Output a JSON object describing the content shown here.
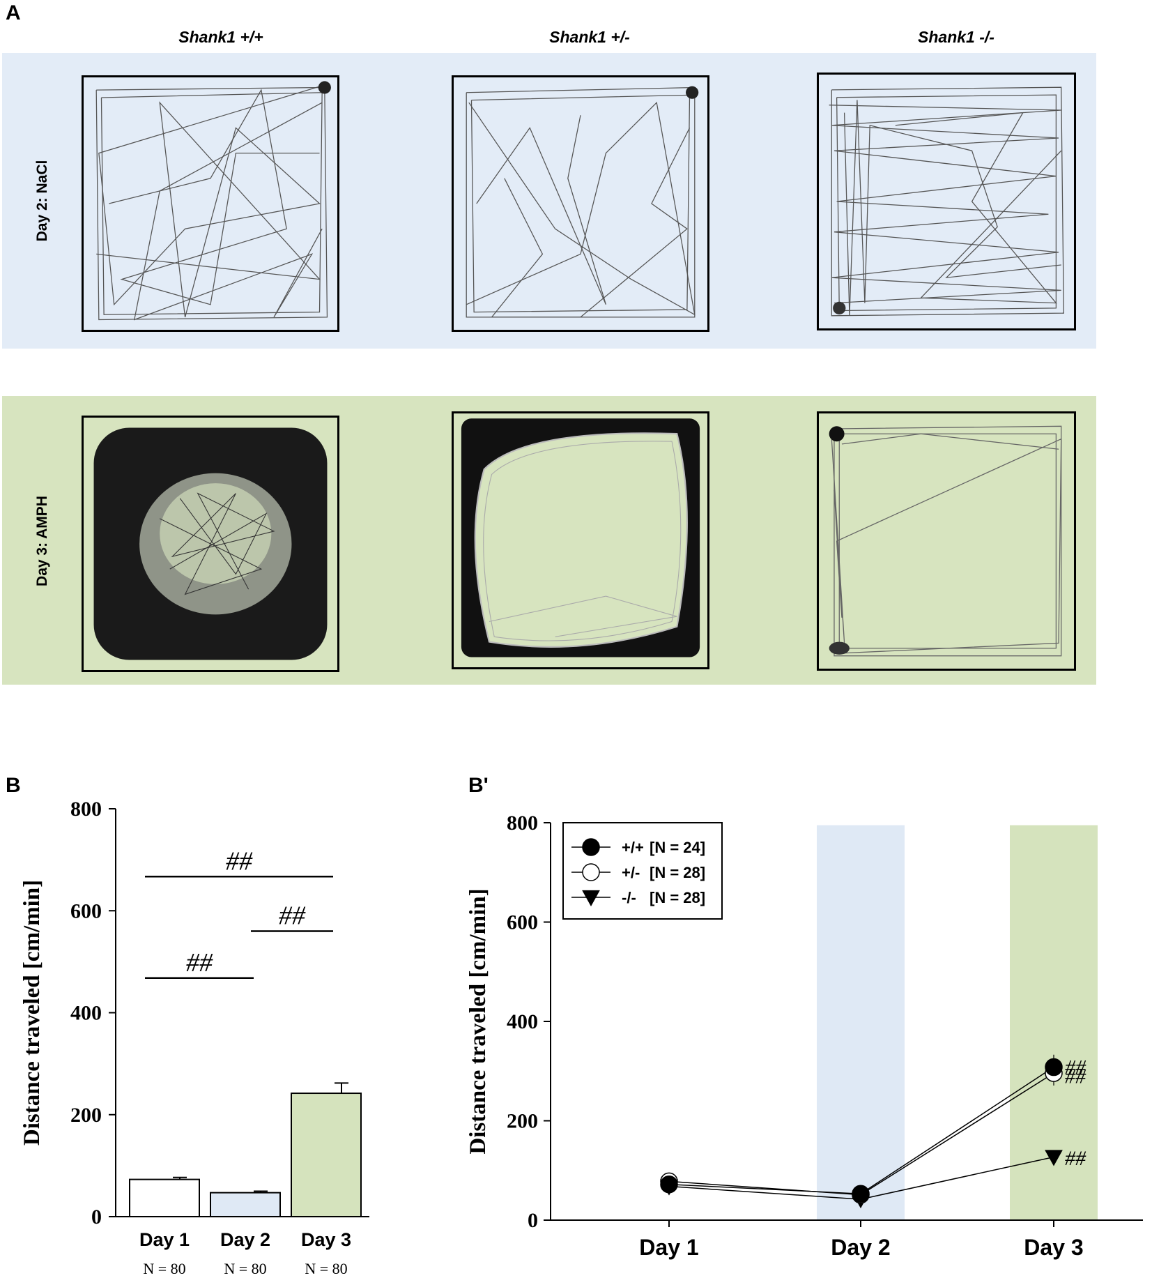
{
  "panels": {
    "a_label": "A",
    "b_label": "B",
    "b2_label": "B'"
  },
  "panel_a": {
    "column_headers": [
      "Shank1 +/+",
      "Shank1 +/-",
      "Shank1 -/-"
    ],
    "row_headers": [
      "Day 2: NaCl",
      "Day 3: AMPH"
    ],
    "colors": {
      "nacl_band": "#e3ecf7",
      "amph_band": "#d7e4bf"
    }
  },
  "chart_data": [
    {
      "type": "bar",
      "categories": [
        "Day 1",
        "Day 2",
        "Day 3"
      ],
      "values": [
        73,
        47,
        242
      ],
      "errors": [
        4,
        3,
        20
      ],
      "bar_colors": [
        "#ffffff",
        "#dfe9f5",
        "#d5e3bd"
      ],
      "sample_sizes": [
        "N = 80",
        "N = 80",
        "N = 80"
      ],
      "ylabel": "Distance traveled [cm/min]",
      "ylim": [
        0,
        800
      ],
      "yticks": [
        0,
        200,
        400,
        600,
        800
      ],
      "significance": [
        {
          "from": "Day 1",
          "to": "Day 3",
          "y": 667,
          "label": "##"
        },
        {
          "from": "Day 2",
          "to": "Day 3",
          "y": 560,
          "label": "##"
        },
        {
          "from": "Day 1",
          "to": "Day 2",
          "y": 468,
          "label": "##"
        }
      ]
    },
    {
      "type": "line",
      "categories": [
        "Day 1",
        "Day 2",
        "Day 3"
      ],
      "ylabel": "Distance traveled [cm/min]",
      "ylim": [
        0,
        800
      ],
      "yticks": [
        0,
        200,
        400,
        600,
        800
      ],
      "background_bands": [
        {
          "category": "Day 2",
          "color": "#dfe9f5"
        },
        {
          "category": "Day 3",
          "color": "#d5e3bd"
        }
      ],
      "series": [
        {
          "name": "+/+",
          "n_label": "[N = 24]",
          "marker": "filled-circle",
          "values": [
            72,
            53,
            308
          ],
          "errors": [
            5,
            4,
            25
          ]
        },
        {
          "name": "+/-",
          "n_label": "[N = 28]",
          "marker": "open-circle",
          "values": [
            78,
            51,
            296
          ],
          "errors": [
            5,
            4,
            25
          ]
        },
        {
          "name": "-/-",
          "n_label": "[N = 28]",
          "marker": "filled-triangle",
          "values": [
            68,
            42,
            127
          ],
          "errors": [
            4,
            3,
            10
          ]
        }
      ],
      "annotations": [
        {
          "category": "Day 3",
          "y": 308,
          "label": "##"
        },
        {
          "category": "Day 3",
          "y": 290,
          "label": "##"
        },
        {
          "category": "Day 3",
          "y": 125,
          "label": "##"
        }
      ],
      "legend_position": "top-left"
    }
  ]
}
